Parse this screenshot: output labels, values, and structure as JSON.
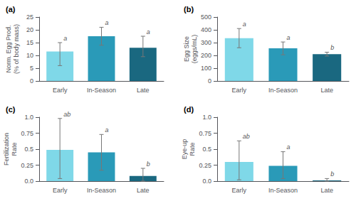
{
  "chart_data": [
    {
      "type": "bar",
      "title": "(a)",
      "ylabel": "Norm. Egg Prod.\n(% of body mass)",
      "categories": [
        "Early",
        "In-Season",
        "Late"
      ],
      "values": [
        11.5,
        17.5,
        13.0
      ],
      "errors_pos": [
        3.5,
        3.5,
        4.5
      ],
      "errors_neg": [
        5.5,
        3.5,
        3.5
      ],
      "annotations": [
        "a",
        "a",
        "a"
      ],
      "colors": [
        "#7FD8E8",
        "#2A9AB8",
        "#1A6880"
      ],
      "ylim": [
        0,
        25
      ],
      "yticks": [
        0,
        5,
        10,
        15,
        20,
        25
      ],
      "grid": false
    },
    {
      "type": "bar",
      "title": "(b)",
      "ylabel": "Egg Size\n(eggs/mL)",
      "categories": [
        "Early",
        "In-Season",
        "Late"
      ],
      "values": [
        335,
        255,
        210
      ],
      "errors_pos": [
        75,
        50,
        15
      ],
      "errors_neg": [
        75,
        50,
        15
      ],
      "annotations": [
        "a",
        "a",
        "b"
      ],
      "colors": [
        "#7FD8E8",
        "#2A9AB8",
        "#1A6880"
      ],
      "ylim": [
        0,
        500
      ],
      "yticks": [
        0,
        100,
        200,
        300,
        400,
        500
      ],
      "grid": false
    },
    {
      "type": "bar",
      "title": "(c)",
      "ylabel": "Fertilization\nRate",
      "categories": [
        "Early",
        "In-Season",
        "Late"
      ],
      "values": [
        0.49,
        0.45,
        0.08
      ],
      "errors_pos": [
        0.49,
        0.28,
        0.12
      ],
      "errors_neg": [
        0.45,
        0.28,
        0.08
      ],
      "annotations": [
        "ab",
        "a",
        "b"
      ],
      "colors": [
        "#7FD8E8",
        "#2A9AB8",
        "#1A6880"
      ],
      "ylim": [
        0,
        1
      ],
      "yticks": [
        {
          "value": 0,
          "label": "0.0"
        },
        0.25,
        0.5,
        0.75,
        {
          "value": 1,
          "label": "1.0"
        }
      ],
      "grid": false
    },
    {
      "type": "bar",
      "title": "(d)",
      "ylabel": "Eye-up\nRate",
      "categories": [
        "Early",
        "In-Season",
        "Late"
      ],
      "values": [
        0.3,
        0.24,
        0.01
      ],
      "errors_pos": [
        0.33,
        0.22,
        0.03
      ],
      "errors_neg": [
        0.28,
        0.2,
        0.01
      ],
      "annotations": [
        "ab",
        "a",
        "b"
      ],
      "colors": [
        "#7FD8E8",
        "#2A9AB8",
        "#1A6880"
      ],
      "ylim": [
        0,
        1
      ],
      "yticks": [
        {
          "value": 0,
          "label": "0.0"
        },
        0.25,
        0.5,
        0.75,
        {
          "value": 1,
          "label": "1.0"
        }
      ],
      "grid": false
    }
  ]
}
